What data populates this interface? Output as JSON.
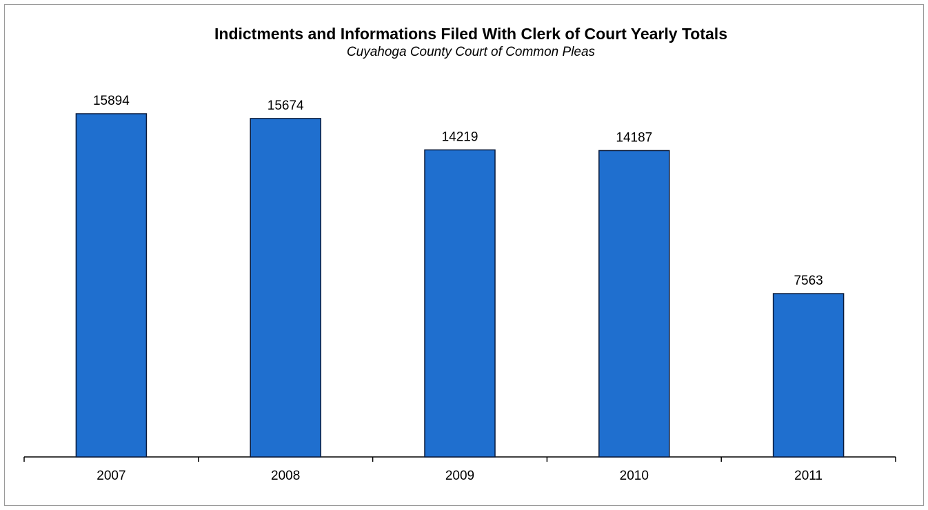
{
  "chart_data": {
    "type": "bar",
    "title": "Indictments and Informations  Filed With Clerk of Court Yearly  Totals",
    "subtitle": "Cuyahoga County Court of Common Pleas",
    "categories": [
      "2007",
      "2008",
      "2009",
      "2010",
      "2011"
    ],
    "values": [
      15894,
      15674,
      14219,
      14187,
      7563
    ],
    "data_labels": [
      "15894",
      "15674",
      "14219",
      "14187",
      "7563"
    ],
    "xlabel": "",
    "ylabel": "",
    "ylim": [
      0,
      18000
    ],
    "grid": false,
    "legend": "none",
    "bar_color": "#1f6fcf",
    "bar_edge_color": "#0a1a3a"
  }
}
